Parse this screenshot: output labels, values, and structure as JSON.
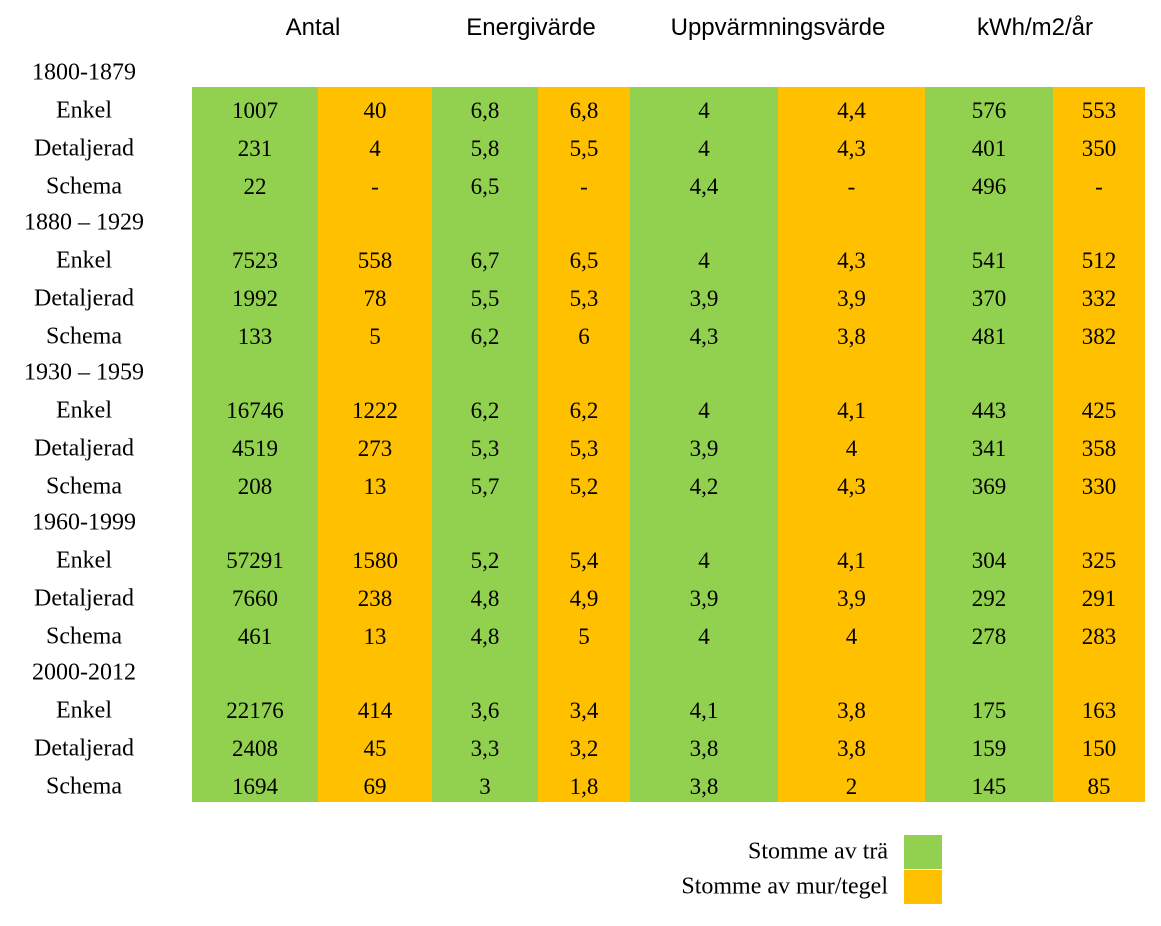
{
  "header": {
    "columns": [
      "Antal",
      "Energivärde",
      "Uppvärmningsvärde",
      "kWh/m2/år"
    ]
  },
  "table": {
    "groups": [
      {
        "period": "1800-1879",
        "rows": [
          {
            "label": "Enkel",
            "values": [
              "1007",
              "40",
              "6,8",
              "6,8",
              "4",
              "4,4",
              "576",
              "553"
            ]
          },
          {
            "label": "Detaljerad",
            "values": [
              "231",
              "4",
              "5,8",
              "5,5",
              "4",
              "4,3",
              "401",
              "350"
            ]
          },
          {
            "label": "Schema",
            "values": [
              "22",
              "-",
              "6,5",
              "-",
              "4,4",
              "-",
              "496",
              "-"
            ]
          }
        ]
      },
      {
        "period": "1880 – 1929",
        "rows": [
          {
            "label": "Enkel",
            "values": [
              "7523",
              "558",
              "6,7",
              "6,5",
              "4",
              "4,3",
              "541",
              "512"
            ]
          },
          {
            "label": "Detaljerad",
            "values": [
              "1992",
              "78",
              "5,5",
              "5,3",
              "3,9",
              "3,9",
              "370",
              "332"
            ]
          },
          {
            "label": "Schema",
            "values": [
              "133",
              "5",
              "6,2",
              "6",
              "4,3",
              "3,8",
              "481",
              "382"
            ]
          }
        ]
      },
      {
        "period": "1930 – 1959",
        "rows": [
          {
            "label": "Enkel",
            "values": [
              "16746",
              "1222",
              "6,2",
              "6,2",
              "4",
              "4,1",
              "443",
              "425"
            ]
          },
          {
            "label": "Detaljerad",
            "values": [
              "4519",
              "273",
              "5,3",
              "5,3",
              "3,9",
              "4",
              "341",
              "358"
            ]
          },
          {
            "label": "Schema",
            "values": [
              "208",
              "13",
              "5,7",
              "5,2",
              "4,2",
              "4,3",
              "369",
              "330"
            ]
          }
        ]
      },
      {
        "period": "1960-1999",
        "rows": [
          {
            "label": "Enkel",
            "values": [
              "57291",
              "1580",
              "5,2",
              "5,4",
              "4",
              "4,1",
              "304",
              "325"
            ]
          },
          {
            "label": "Detaljerad",
            "values": [
              "7660",
              "238",
              "4,8",
              "4,9",
              "3,9",
              "3,9",
              "292",
              "291"
            ]
          },
          {
            "label": "Schema",
            "values": [
              "461",
              "13",
              "4,8",
              "5",
              "4",
              "4",
              "278",
              "283"
            ]
          }
        ]
      },
      {
        "period": "2000-2012",
        "rows": [
          {
            "label": "Enkel",
            "values": [
              "22176",
              "414",
              "3,6",
              "3,4",
              "4,1",
              "3,8",
              "175",
              "163"
            ]
          },
          {
            "label": "Detaljerad",
            "values": [
              "2408",
              "45",
              "3,3",
              "3,2",
              "3,8",
              "3,8",
              "159",
              "150"
            ]
          },
          {
            "label": "Schema",
            "values": [
              "1694",
              "69",
              "3",
              "1,8",
              "3,8",
              "2",
              "145",
              "85"
            ]
          }
        ]
      }
    ]
  },
  "legend": [
    "Stomme av trä",
    "Stomme av mur/tegel"
  ]
}
